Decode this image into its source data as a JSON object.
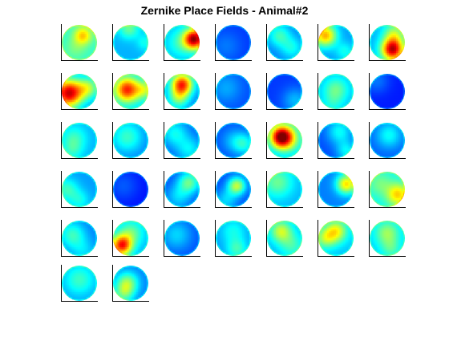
{
  "title": "Zernike Place Fields - Animal#2",
  "colormap": "jet",
  "chart_data": {
    "type": "heatmap",
    "title": "Zernike Place Fields - Animal#2",
    "layout": {
      "rows": 6,
      "cols": 7
    },
    "panel_count": 37,
    "panels": [
      {
        "bg": 0.42,
        "blobs": [
          [
            0.6,
            0.3,
            0.7,
            0.18
          ],
          [
            0.4,
            0.65,
            0.5,
            0.22
          ]
        ]
      },
      {
        "bg": 0.3,
        "blobs": [
          [
            0.45,
            0.1,
            0.5,
            0.2
          ],
          [
            0.9,
            0.5,
            0.4,
            0.16
          ]
        ]
      },
      {
        "bg": 0.3,
        "blobs": [
          [
            0.85,
            0.4,
            1.0,
            0.2
          ],
          [
            0.5,
            0.5,
            0.45,
            0.28
          ]
        ]
      },
      {
        "bg": 0.18,
        "blobs": [
          [
            0.3,
            0.6,
            0.25,
            0.3
          ]
        ]
      },
      {
        "bg": 0.25,
        "blobs": [
          [
            0.35,
            0.3,
            0.45,
            0.22
          ],
          [
            0.7,
            0.65,
            0.4,
            0.22
          ]
        ]
      },
      {
        "bg": 0.28,
        "blobs": [
          [
            0.2,
            0.3,
            0.75,
            0.22
          ],
          [
            0.75,
            0.75,
            0.4,
            0.18
          ]
        ]
      },
      {
        "bg": 0.3,
        "blobs": [
          [
            0.65,
            0.7,
            1.0,
            0.22
          ],
          [
            0.7,
            0.25,
            0.55,
            0.22
          ]
        ]
      },
      {
        "bg": 0.25,
        "blobs": [
          [
            0.2,
            0.55,
            1.0,
            0.28
          ],
          [
            0.75,
            0.4,
            0.55,
            0.22
          ]
        ]
      },
      {
        "bg": 0.32,
        "blobs": [
          [
            0.4,
            0.45,
            0.9,
            0.25
          ],
          [
            0.9,
            0.45,
            0.55,
            0.18
          ]
        ]
      },
      {
        "bg": 0.25,
        "blobs": [
          [
            0.5,
            0.3,
            0.9,
            0.22
          ],
          [
            0.4,
            0.7,
            0.5,
            0.2
          ]
        ]
      },
      {
        "bg": 0.2,
        "blobs": [
          [
            0.3,
            0.4,
            0.3,
            0.3
          ]
        ]
      },
      {
        "bg": 0.18,
        "blobs": [
          [
            0.8,
            0.75,
            0.32,
            0.25
          ]
        ]
      },
      {
        "bg": 0.3,
        "blobs": [
          [
            0.5,
            0.45,
            0.5,
            0.25
          ],
          [
            0.4,
            0.85,
            0.38,
            0.2
          ]
        ]
      },
      {
        "bg": 0.15,
        "blobs": [
          [
            0.2,
            0.2,
            0.25,
            0.25
          ]
        ]
      },
      {
        "bg": 0.3,
        "blobs": [
          [
            0.35,
            0.45,
            0.45,
            0.25
          ],
          [
            0.3,
            0.8,
            0.4,
            0.2
          ]
        ]
      },
      {
        "bg": 0.25,
        "blobs": [
          [
            0.4,
            0.4,
            0.45,
            0.3
          ]
        ]
      },
      {
        "bg": 0.22,
        "blobs": [
          [
            0.3,
            0.3,
            0.4,
            0.25
          ],
          [
            0.7,
            0.75,
            0.38,
            0.25
          ]
        ]
      },
      {
        "bg": 0.2,
        "blobs": [
          [
            0.8,
            0.6,
            0.4,
            0.22
          ],
          [
            0.5,
            0.5,
            0.3,
            0.25
          ]
        ]
      },
      {
        "bg": 0.28,
        "blobs": [
          [
            0.4,
            0.4,
            0.95,
            0.22
          ],
          [
            0.6,
            0.45,
            0.55,
            0.3
          ]
        ]
      },
      {
        "bg": 0.2,
        "blobs": [
          [
            0.6,
            0.25,
            0.4,
            0.25
          ],
          [
            0.8,
            0.8,
            0.38,
            0.2
          ]
        ]
      },
      {
        "bg": 0.22,
        "blobs": [
          [
            0.55,
            0.35,
            0.4,
            0.25
          ]
        ]
      },
      {
        "bg": 0.28,
        "blobs": [
          [
            0.15,
            0.5,
            0.45,
            0.22
          ],
          [
            0.5,
            0.8,
            0.4,
            0.2
          ]
        ]
      },
      {
        "bg": 0.14,
        "blobs": [
          [
            0.3,
            0.4,
            0.22,
            0.3
          ]
        ]
      },
      {
        "bg": 0.2,
        "blobs": [
          [
            0.7,
            0.3,
            0.5,
            0.22
          ],
          [
            0.4,
            0.7,
            0.35,
            0.25
          ]
        ]
      },
      {
        "bg": 0.2,
        "blobs": [
          [
            0.6,
            0.4,
            0.6,
            0.18
          ],
          [
            0.3,
            0.8,
            0.35,
            0.22
          ]
        ]
      },
      {
        "bg": 0.3,
        "blobs": [
          [
            0.3,
            0.3,
            0.5,
            0.3
          ]
        ]
      },
      {
        "bg": 0.25,
        "blobs": [
          [
            0.8,
            0.35,
            0.7,
            0.2
          ],
          [
            0.4,
            0.6,
            0.25,
            0.25
          ]
        ]
      },
      {
        "bg": 0.38,
        "blobs": [
          [
            0.8,
            0.65,
            0.7,
            0.22
          ],
          [
            0.3,
            0.35,
            0.5,
            0.25
          ]
        ]
      },
      {
        "bg": 0.25,
        "blobs": [
          [
            0.3,
            0.4,
            0.45,
            0.25
          ],
          [
            0.6,
            0.85,
            0.35,
            0.25
          ]
        ]
      },
      {
        "bg": 0.3,
        "blobs": [
          [
            0.25,
            0.7,
            0.9,
            0.2
          ],
          [
            0.5,
            0.35,
            0.5,
            0.25
          ]
        ]
      },
      {
        "bg": 0.2,
        "blobs": [
          [
            0.35,
            0.4,
            0.35,
            0.3
          ]
        ]
      },
      {
        "bg": 0.28,
        "blobs": [
          [
            0.5,
            0.3,
            0.4,
            0.25
          ],
          [
            0.6,
            0.8,
            0.45,
            0.2
          ]
        ]
      },
      {
        "bg": 0.3,
        "blobs": [
          [
            0.4,
            0.3,
            0.6,
            0.22
          ],
          [
            0.7,
            0.7,
            0.45,
            0.25
          ]
        ]
      },
      {
        "bg": 0.32,
        "blobs": [
          [
            0.5,
            0.3,
            0.65,
            0.22
          ],
          [
            0.2,
            0.5,
            0.55,
            0.2
          ]
        ]
      },
      {
        "bg": 0.32,
        "blobs": [
          [
            0.5,
            0.35,
            0.55,
            0.25
          ],
          [
            0.6,
            0.8,
            0.45,
            0.2
          ]
        ]
      },
      {
        "bg": 0.28,
        "blobs": [
          [
            0.5,
            0.4,
            0.45,
            0.3
          ]
        ]
      },
      {
        "bg": 0.25,
        "blobs": [
          [
            0.4,
            0.5,
            0.55,
            0.22
          ],
          [
            0.3,
            0.8,
            0.45,
            0.2
          ]
        ]
      }
    ]
  }
}
